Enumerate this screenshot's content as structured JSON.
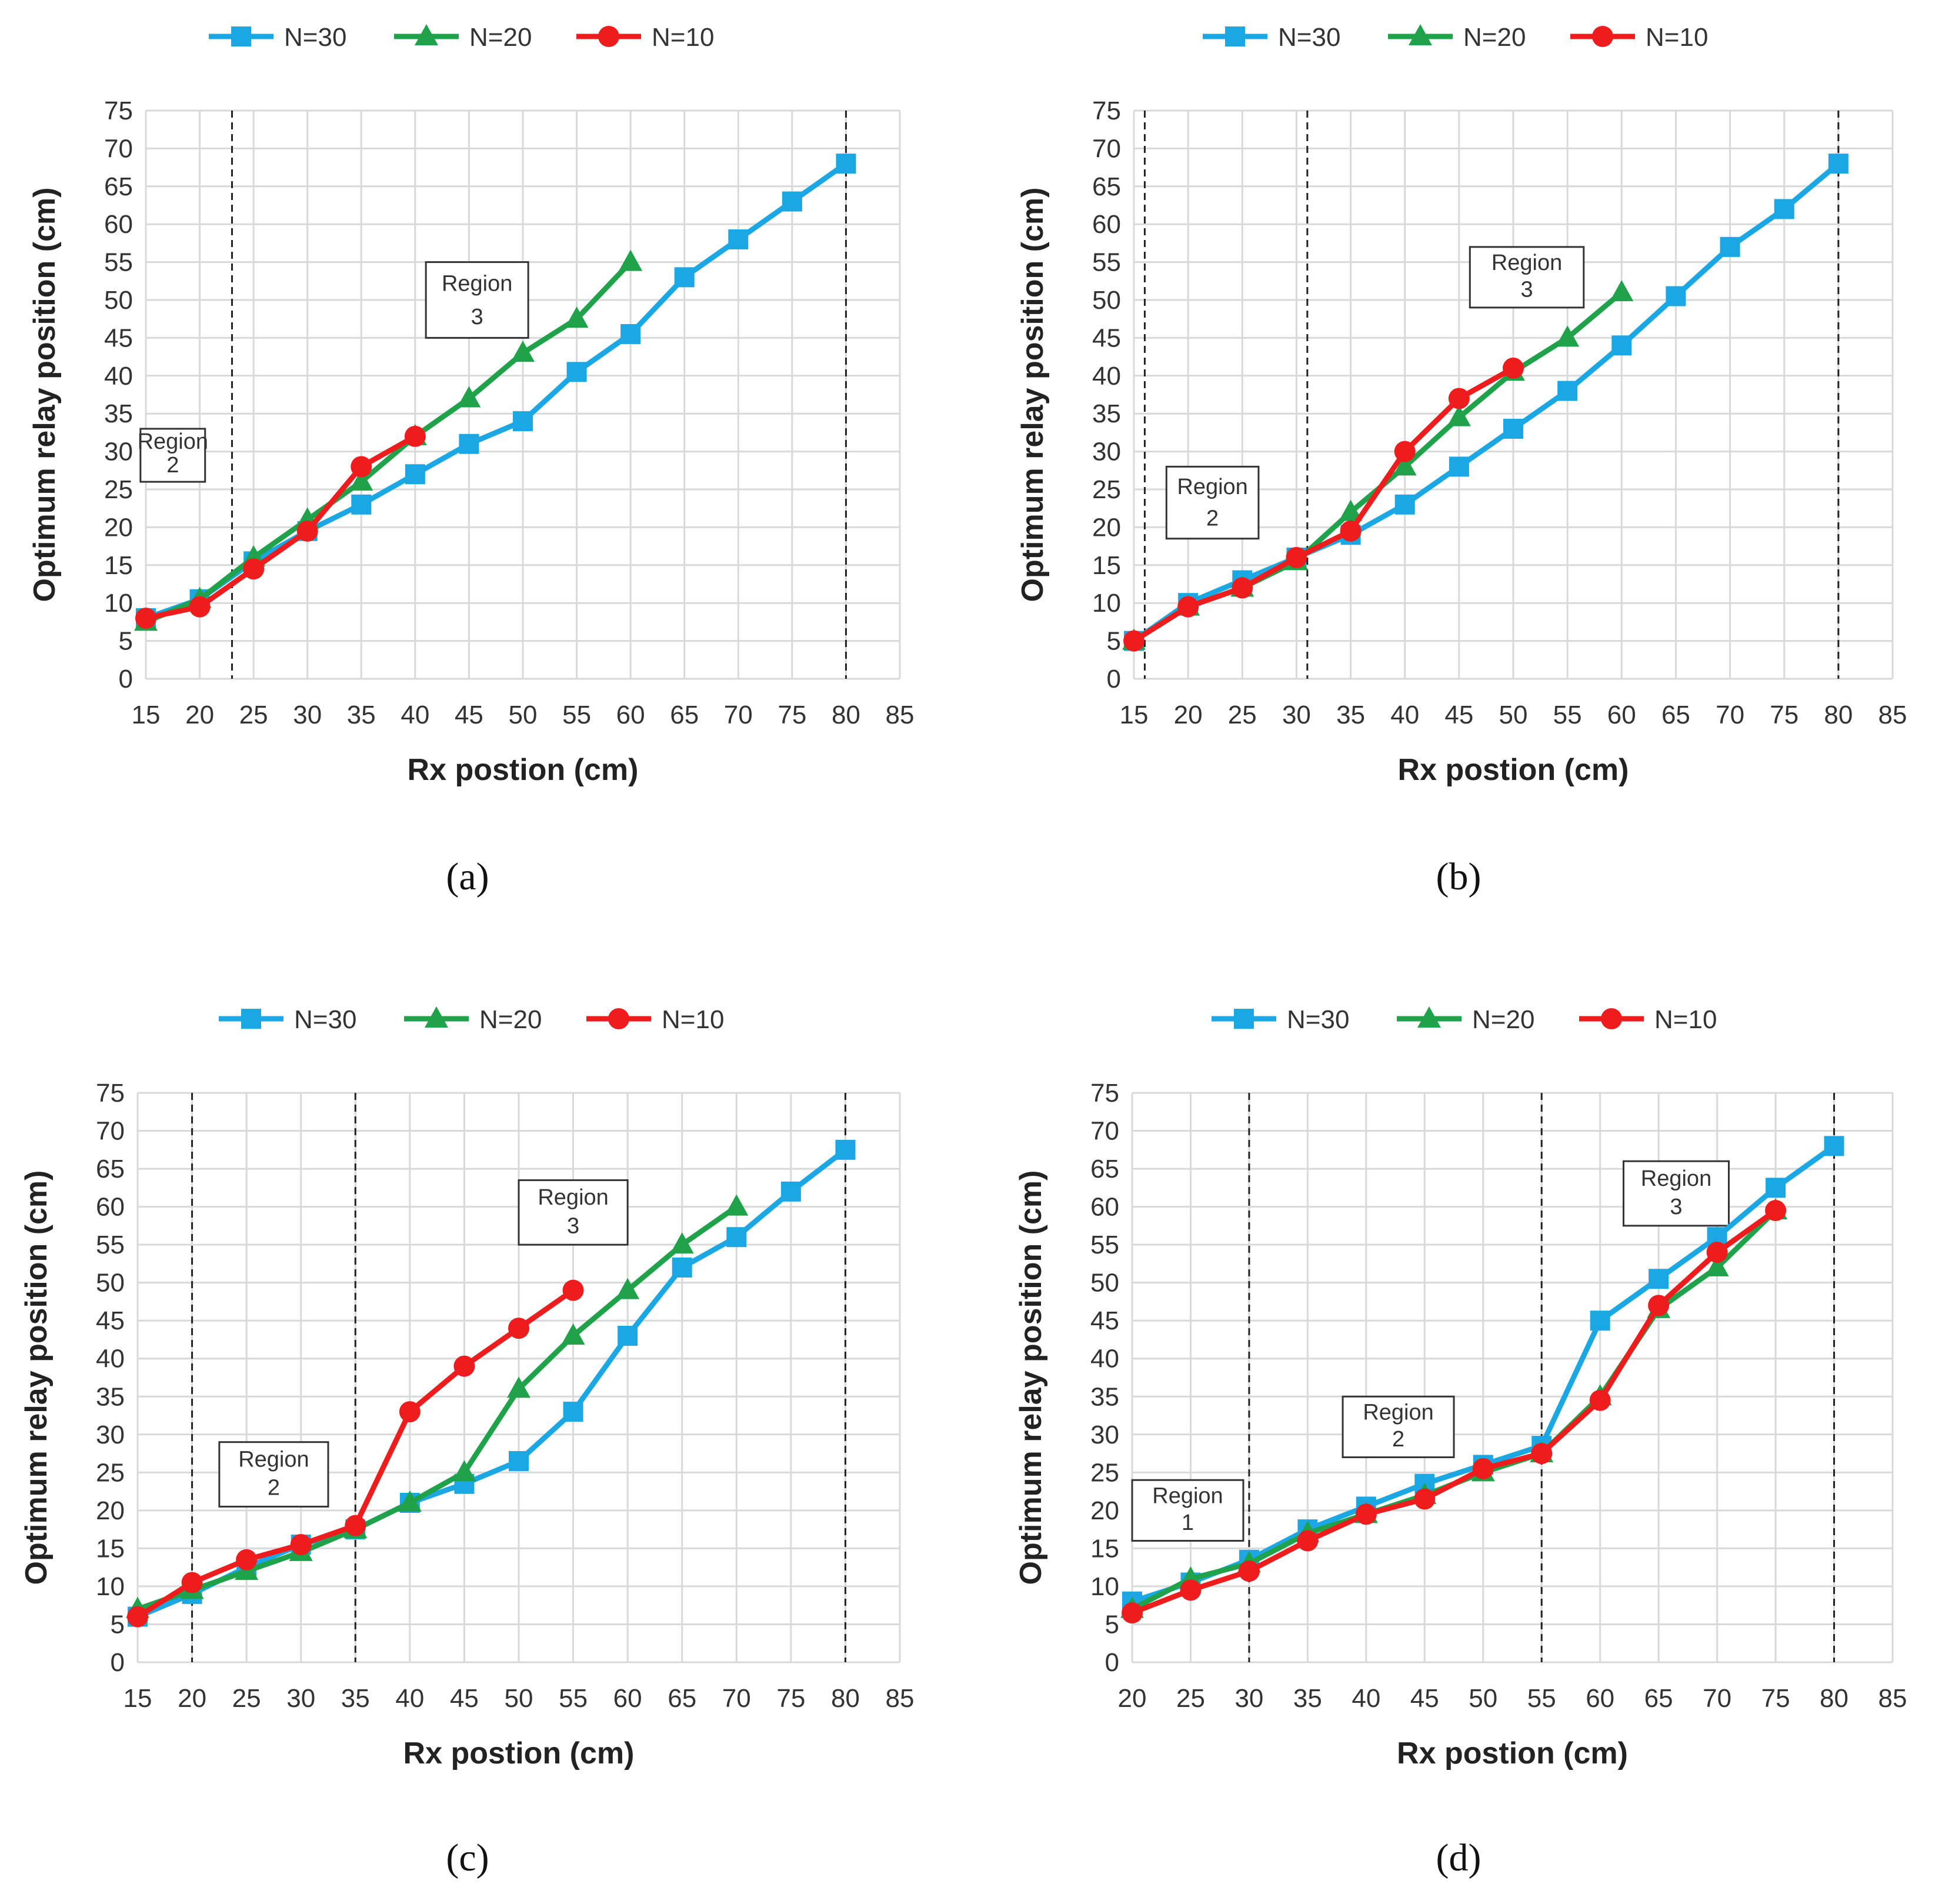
{
  "figure": {
    "colors": {
      "N30": "#1aa7e3",
      "N20": "#1fa24a",
      "N10": "#ee1c1c",
      "grid": "#d9d9d9",
      "vline": "#222222"
    }
  },
  "chart_data": [
    {
      "type": "line",
      "caption": "(a)",
      "xlabel": "Rx postion (cm)",
      "ylabel": "Optimum relay position (cm)",
      "xlim": [
        15,
        85
      ],
      "ylim": [
        0,
        75
      ],
      "xticks": [
        15,
        20,
        25,
        30,
        35,
        40,
        45,
        50,
        55,
        60,
        65,
        70,
        75,
        80,
        85
      ],
      "yticks": [
        0,
        5,
        10,
        15,
        20,
        25,
        30,
        35,
        40,
        45,
        50,
        55,
        60,
        65,
        70,
        75
      ],
      "legend": [
        "N=30",
        "N=20",
        "N=10"
      ],
      "series": [
        {
          "name": "N=30",
          "marker": "square",
          "x": [
            15,
            20,
            25,
            30,
            35,
            40,
            45,
            50,
            55,
            60,
            65,
            70,
            75,
            80
          ],
          "y": [
            8,
            10.5,
            15.5,
            19.5,
            23,
            27,
            31,
            34,
            40.5,
            45.5,
            53,
            58,
            63,
            68
          ]
        },
        {
          "name": "N=20",
          "marker": "triangle",
          "x": [
            15,
            20,
            25,
            30,
            35,
            40,
            45,
            50,
            55,
            60
          ],
          "y": [
            7.5,
            10.5,
            16,
            21,
            26,
            32,
            37,
            43,
            47.5,
            55
          ]
        },
        {
          "name": "N=10",
          "marker": "circle",
          "x": [
            15,
            20,
            25,
            30,
            35,
            40
          ],
          "y": [
            8,
            9.5,
            14.5,
            19.5,
            28,
            32
          ]
        }
      ],
      "vlines": [
        23,
        80
      ],
      "regions": [
        {
          "line1": "Region",
          "line2": "2",
          "x1": 14.5,
          "x2": 20.5,
          "y1": 33,
          "y2": 26
        },
        {
          "line1": "Region",
          "line2": "3",
          "x1": 41,
          "x2": 50.5,
          "y1": 55,
          "y2": 45
        }
      ]
    },
    {
      "type": "line",
      "caption": "(b)",
      "xlabel": "Rx postion (cm)",
      "ylabel": "Optimum relay position (cm)",
      "xlim": [
        15,
        85
      ],
      "ylim": [
        0,
        75
      ],
      "xticks": [
        15,
        20,
        25,
        30,
        35,
        40,
        45,
        50,
        55,
        60,
        65,
        70,
        75,
        80,
        85
      ],
      "yticks": [
        0,
        5,
        10,
        15,
        20,
        25,
        30,
        35,
        40,
        45,
        50,
        55,
        60,
        65,
        70,
        75
      ],
      "legend": [
        "N=30",
        "N=20",
        "N=10"
      ],
      "series": [
        {
          "name": "N=30",
          "marker": "square",
          "x": [
            15,
            20,
            25,
            30,
            35,
            40,
            45,
            50,
            55,
            60,
            65,
            70,
            75,
            80
          ],
          "y": [
            5,
            10,
            13,
            16,
            19,
            23,
            28,
            33,
            38,
            44,
            50.5,
            57,
            62,
            68
          ]
        },
        {
          "name": "N=20",
          "marker": "triangle",
          "x": [
            15,
            20,
            25,
            30,
            35,
            40,
            45,
            50,
            55,
            60
          ],
          "y": [
            5,
            9.5,
            12,
            15.5,
            22,
            28,
            34.5,
            40.5,
            45,
            51
          ]
        },
        {
          "name": "N=10",
          "marker": "circle",
          "x": [
            15,
            20,
            25,
            30,
            35,
            40,
            45,
            50
          ],
          "y": [
            5,
            9.5,
            12,
            16,
            19.5,
            30,
            37,
            41
          ]
        }
      ],
      "vlines": [
        16,
        31,
        80
      ],
      "regions": [
        {
          "line1": "Region",
          "line2": "2",
          "x1": 18,
          "x2": 26.5,
          "y1": 28,
          "y2": 18.5
        },
        {
          "line1": "Region",
          "line2": "3",
          "x1": 46,
          "x2": 56.5,
          "y1": 57,
          "y2": 49
        }
      ]
    },
    {
      "type": "line",
      "caption": "(c)",
      "xlabel": "Rx postion (cm)",
      "ylabel": "Optimum relay position (cm)",
      "xlim": [
        15,
        85
      ],
      "ylim": [
        0,
        75
      ],
      "xticks": [
        15,
        20,
        25,
        30,
        35,
        40,
        45,
        50,
        55,
        60,
        65,
        70,
        75,
        80,
        85
      ],
      "yticks": [
        0,
        5,
        10,
        15,
        20,
        25,
        30,
        35,
        40,
        45,
        50,
        55,
        60,
        65,
        70,
        75
      ],
      "legend": [
        "N=30",
        "N=20",
        "N=10"
      ],
      "series": [
        {
          "name": "N=30",
          "marker": "square",
          "x": [
            15,
            20,
            25,
            30,
            35,
            40,
            45,
            50,
            55,
            60,
            65,
            70,
            75,
            80
          ],
          "y": [
            6,
            9,
            12.5,
            15.5,
            17.5,
            21,
            23.5,
            26.5,
            33,
            43,
            52,
            56,
            62,
            67.5
          ]
        },
        {
          "name": "N=20",
          "marker": "triangle",
          "x": [
            15,
            20,
            25,
            30,
            35,
            40,
            45,
            50,
            55,
            60,
            65,
            70
          ],
          "y": [
            7,
            9.5,
            12,
            14.5,
            17.5,
            21,
            25,
            36,
            43,
            49,
            55,
            60
          ]
        },
        {
          "name": "N=10",
          "marker": "circle",
          "x": [
            15,
            20,
            25,
            30,
            35,
            40,
            45,
            50,
            55
          ],
          "y": [
            6,
            10.5,
            13.5,
            15.5,
            18,
            33,
            39,
            44,
            49
          ]
        }
      ],
      "vlines": [
        20,
        35,
        80
      ],
      "regions": [
        {
          "line1": "Region",
          "line2": "2",
          "x1": 22.5,
          "x2": 32.5,
          "y1": 29,
          "y2": 20.5
        },
        {
          "line1": "Region",
          "line2": "3",
          "x1": 50,
          "x2": 60,
          "y1": 63.5,
          "y2": 55
        }
      ]
    },
    {
      "type": "line",
      "caption": "(d)",
      "xlabel": "Rx postion (cm)",
      "ylabel": "Optimum relay position (cm)",
      "xlim": [
        20,
        85
      ],
      "ylim": [
        0,
        75
      ],
      "xticks": [
        20,
        25,
        30,
        35,
        40,
        45,
        50,
        55,
        60,
        65,
        70,
        75,
        80,
        85
      ],
      "yticks": [
        0,
        5,
        10,
        15,
        20,
        25,
        30,
        35,
        40,
        45,
        50,
        55,
        60,
        65,
        70,
        75
      ],
      "legend": [
        "N=30",
        "N=20",
        "N=10"
      ],
      "series": [
        {
          "name": "N=30",
          "marker": "square",
          "x": [
            20,
            25,
            30,
            35,
            40,
            45,
            50,
            55,
            60,
            65,
            70,
            75,
            80
          ],
          "y": [
            8,
            10.5,
            13.5,
            17.5,
            20.5,
            23.5,
            26,
            28.5,
            45,
            50.5,
            56,
            62.5,
            68
          ]
        },
        {
          "name": "N=20",
          "marker": "triangle",
          "x": [
            20,
            25,
            30,
            35,
            40,
            45,
            50,
            55,
            60,
            65,
            70,
            75
          ],
          "y": [
            7,
            11,
            13,
            17,
            19.5,
            22,
            25,
            27.5,
            35,
            46.5,
            52,
            59.5
          ]
        },
        {
          "name": "N=10",
          "marker": "circle",
          "x": [
            20,
            25,
            30,
            35,
            40,
            45,
            50,
            55,
            60,
            65,
            70,
            75
          ],
          "y": [
            6.5,
            9.5,
            12,
            16,
            19.5,
            21.5,
            25.5,
            27.5,
            34.5,
            47,
            54,
            59.5
          ]
        }
      ],
      "vlines": [
        30,
        55,
        80
      ],
      "regions": [
        {
          "line1": "Region",
          "line2": "1",
          "x1": 20,
          "x2": 29.5,
          "y1": 24,
          "y2": 16
        },
        {
          "line1": "Region",
          "line2": "2",
          "x1": 38,
          "x2": 47.5,
          "y1": 35,
          "y2": 27
        },
        {
          "line1": "Region",
          "line2": "3",
          "x1": 62,
          "x2": 71,
          "y1": 66,
          "y2": 57.5
        }
      ]
    }
  ]
}
